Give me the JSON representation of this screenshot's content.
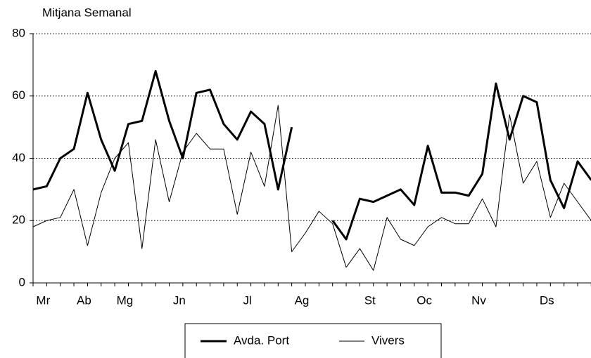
{
  "chart_data": {
    "type": "line",
    "title": "Mitjana Semanal",
    "categories": [
      null,
      "Mr",
      null,
      null,
      "Ab",
      null,
      null,
      "Mg",
      null,
      null,
      null,
      "Jn",
      null,
      null,
      null,
      null,
      "Jl",
      null,
      null,
      null,
      "Ag",
      null,
      null,
      null,
      null,
      "St",
      null,
      null,
      null,
      "Oc",
      null,
      null,
      null,
      "Nv",
      null,
      null,
      null,
      null,
      "Ds",
      null,
      null,
      null
    ],
    "series": [
      {
        "name": "Avda. Port",
        "color": "#000000",
        "width": 3,
        "values": [
          30,
          31,
          40,
          43,
          61,
          46,
          36,
          51,
          52,
          68,
          52,
          40,
          61,
          62,
          51,
          46,
          55,
          51,
          30,
          50,
          null,
          null,
          20,
          14,
          27,
          26,
          28,
          30,
          25,
          44,
          29,
          29,
          28,
          35,
          64,
          46,
          60,
          58,
          33,
          24,
          39,
          33
        ]
      },
      {
        "name": "Vivers",
        "color": "#000000",
        "width": 1,
        "values": [
          18,
          20,
          21,
          30,
          12,
          29,
          40,
          45,
          11,
          46,
          26,
          42,
          48,
          43,
          43,
          22,
          42,
          31,
          57,
          10,
          16,
          23,
          19,
          5,
          11,
          4,
          21,
          14,
          12,
          18,
          21,
          19,
          19,
          27,
          18,
          54,
          32,
          39,
          21,
          32,
          26,
          20
        ]
      }
    ],
    "ylim": [
      0,
      80
    ],
    "yticks": [
      0,
      20,
      40,
      60,
      80
    ],
    "grid": true
  }
}
